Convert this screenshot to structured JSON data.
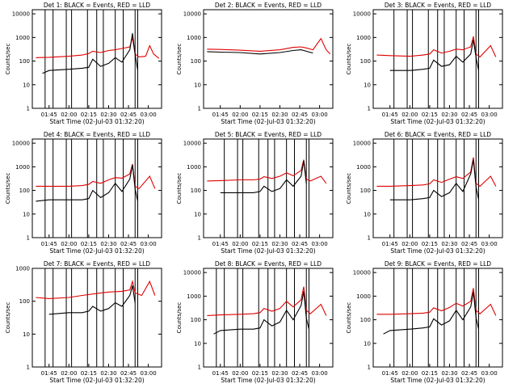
{
  "figure": {
    "xlabel": "Start Time (02-Jul-03 01:32:20)",
    "ylabel": "Counts/sec",
    "x_ticks": [
      "01:45",
      "02:00",
      "02:15",
      "02:30",
      "02:45",
      "03:00"
    ],
    "y_ticks": [
      "1",
      "10",
      "100",
      "1000",
      "10000"
    ],
    "colors": {
      "events": "#000000",
      "lld": "#e00000",
      "axes": "#000000",
      "background": "#ffffff"
    }
  },
  "chart_data": [
    {
      "type": "line",
      "title": "Det 1: BLACK = Events, RED = LLD",
      "x_unit": "time (HH:MM, 02-Jul-03)",
      "xlim": [
        "01:32:20",
        "03:10:00"
      ],
      "ylim": [
        1,
        15000
      ],
      "y_scale": "log",
      "series": [],
      "lld": [
        [
          "01:35",
          140
        ],
        [
          "01:45",
          145
        ],
        [
          "02:00",
          160
        ],
        [
          "02:10",
          180
        ],
        [
          "02:15",
          210
        ],
        [
          "02:18",
          260
        ],
        [
          "02:24",
          230
        ],
        [
          "02:30",
          280
        ],
        [
          "02:35",
          300
        ],
        [
          "02:40",
          340
        ],
        [
          "02:46",
          400
        ],
        [
          "02:48",
          1000
        ],
        [
          "02:50",
          200
        ],
        [
          "02:53",
          150
        ],
        [
          "02:58",
          160
        ],
        [
          "03:01",
          450
        ],
        [
          "03:04",
          200
        ],
        [
          "03:08",
          130
        ]
      ],
      "events": [
        [
          "01:40",
          30
        ],
        [
          "01:45",
          40
        ],
        [
          "02:00",
          45
        ],
        [
          "02:10",
          50
        ],
        [
          "02:15",
          55
        ],
        [
          "02:18",
          120
        ],
        [
          "02:24",
          60
        ],
        [
          "02:30",
          80
        ],
        [
          "02:35",
          140
        ],
        [
          "02:40",
          90
        ],
        [
          "02:46",
          300
        ],
        [
          "02:48",
          1500
        ],
        [
          "02:50",
          200
        ],
        [
          "02:52",
          40
        ]
      ],
      "interval_lines": [
        "01:42",
        "01:48",
        "01:58",
        "02:02",
        "02:14",
        "02:21",
        "02:26",
        "02:35",
        "02:41",
        "02:50",
        "02:52"
      ]
    },
    {
      "type": "line",
      "title": "Det 2: BLACK = Events, RED = LLD",
      "x_unit": "time (HH:MM, 02-Jul-03)",
      "xlim": [
        "01:32:20",
        "03:10:00"
      ],
      "ylim": [
        1,
        15000
      ],
      "y_scale": "log",
      "series": [],
      "lld": [
        [
          "01:35",
          320
        ],
        [
          "01:45",
          310
        ],
        [
          "02:00",
          290
        ],
        [
          "02:15",
          260
        ],
        [
          "02:30",
          300
        ],
        [
          "02:40",
          380
        ],
        [
          "02:46",
          400
        ],
        [
          "02:50",
          360
        ],
        [
          "02:55",
          300
        ],
        [
          "03:01",
          900
        ],
        [
          "03:05",
          300
        ],
        [
          "03:08",
          200
        ]
      ],
      "events": [
        [
          "01:35",
          250
        ],
        [
          "01:45",
          240
        ],
        [
          "02:00",
          230
        ],
        [
          "02:15",
          200
        ],
        [
          "02:30",
          230
        ],
        [
          "02:40",
          280
        ],
        [
          "02:46",
          300
        ],
        [
          "02:50",
          260
        ],
        [
          "02:55",
          220
        ]
      ],
      "interval_lines": []
    },
    {
      "type": "line",
      "title": "Det 3: BLACK = Events, RED = LLD",
      "x_unit": "time (HH:MM, 02-Jul-03)",
      "xlim": [
        "01:32:20",
        "03:10:00"
      ],
      "ylim": [
        1,
        15000
      ],
      "y_scale": "log",
      "series": [],
      "lld": [
        [
          "01:35",
          180
        ],
        [
          "01:45",
          170
        ],
        [
          "02:00",
          160
        ],
        [
          "02:10",
          180
        ],
        [
          "02:15",
          200
        ],
        [
          "02:18",
          300
        ],
        [
          "02:24",
          220
        ],
        [
          "02:30",
          260
        ],
        [
          "02:35",
          320
        ],
        [
          "02:40",
          300
        ],
        [
          "02:46",
          400
        ],
        [
          "02:48",
          1100
        ],
        [
          "02:50",
          200
        ],
        [
          "02:53",
          150
        ],
        [
          "03:01",
          450
        ],
        [
          "03:05",
          150
        ]
      ],
      "events": [
        [
          "01:45",
          40
        ],
        [
          "02:00",
          40
        ],
        [
          "02:10",
          45
        ],
        [
          "02:15",
          50
        ],
        [
          "02:18",
          110
        ],
        [
          "02:24",
          60
        ],
        [
          "02:30",
          70
        ],
        [
          "02:35",
          160
        ],
        [
          "02:40",
          90
        ],
        [
          "02:46",
          200
        ],
        [
          "02:48",
          800
        ],
        [
          "02:50",
          150
        ],
        [
          "02:52",
          40
        ]
      ],
      "interval_lines": [
        "01:48",
        "01:58",
        "02:02",
        "02:14",
        "02:21",
        "02:26",
        "02:35",
        "02:41",
        "02:50",
        "02:52"
      ]
    },
    {
      "type": "line",
      "title": "Det 4: BLACK = Events, RED = LLD",
      "x_unit": "time (HH:MM, 02-Jul-03)",
      "xlim": [
        "01:32:20",
        "03:10:00"
      ],
      "ylim": [
        1,
        15000
      ],
      "y_scale": "log",
      "series": [],
      "lld": [
        [
          "01:35",
          150
        ],
        [
          "01:45",
          150
        ],
        [
          "02:00",
          150
        ],
        [
          "02:10",
          160
        ],
        [
          "02:15",
          180
        ],
        [
          "02:18",
          240
        ],
        [
          "02:24",
          200
        ],
        [
          "02:30",
          280
        ],
        [
          "02:35",
          350
        ],
        [
          "02:40",
          330
        ],
        [
          "02:46",
          500
        ],
        [
          "02:48",
          1300
        ],
        [
          "02:50",
          150
        ],
        [
          "02:53",
          120
        ],
        [
          "03:01",
          400
        ],
        [
          "03:05",
          120
        ]
      ],
      "events": [
        [
          "01:35",
          35
        ],
        [
          "01:45",
          40
        ],
        [
          "02:00",
          40
        ],
        [
          "02:10",
          40
        ],
        [
          "02:15",
          45
        ],
        [
          "02:18",
          100
        ],
        [
          "02:24",
          50
        ],
        [
          "02:30",
          80
        ],
        [
          "02:35",
          200
        ],
        [
          "02:40",
          90
        ],
        [
          "02:46",
          300
        ],
        [
          "02:48",
          1200
        ],
        [
          "02:50",
          120
        ],
        [
          "02:52",
          35
        ]
      ],
      "interval_lines": [
        "01:42",
        "01:48",
        "01:58",
        "02:02",
        "02:14",
        "02:21",
        "02:26",
        "02:35",
        "02:41",
        "02:50",
        "02:52"
      ]
    },
    {
      "type": "line",
      "title": "Det 5: BLACK = Events, RED = LLD",
      "x_unit": "time (HH:MM, 02-Jul-03)",
      "xlim": [
        "01:32:20",
        "03:10:00"
      ],
      "ylim": [
        1,
        15000
      ],
      "y_scale": "log",
      "series": [],
      "lld": [
        [
          "01:35",
          250
        ],
        [
          "01:45",
          260
        ],
        [
          "02:00",
          280
        ],
        [
          "02:10",
          280
        ],
        [
          "02:15",
          300
        ],
        [
          "02:18",
          380
        ],
        [
          "02:24",
          320
        ],
        [
          "02:30",
          400
        ],
        [
          "02:35",
          550
        ],
        [
          "02:40",
          420
        ],
        [
          "02:46",
          700
        ],
        [
          "02:48",
          2000
        ],
        [
          "02:50",
          300
        ],
        [
          "02:53",
          250
        ],
        [
          "03:01",
          400
        ],
        [
          "03:05",
          200
        ]
      ],
      "events": [
        [
          "01:45",
          80
        ],
        [
          "02:00",
          80
        ],
        [
          "02:10",
          80
        ],
        [
          "02:15",
          90
        ],
        [
          "02:18",
          150
        ],
        [
          "02:24",
          90
        ],
        [
          "02:30",
          120
        ],
        [
          "02:35",
          280
        ],
        [
          "02:40",
          150
        ],
        [
          "02:46",
          400
        ],
        [
          "02:48",
          1800
        ],
        [
          "02:50",
          200
        ]
      ],
      "interval_lines": [
        "01:48",
        "01:58",
        "02:02",
        "02:14",
        "02:21",
        "02:26",
        "02:35",
        "02:41",
        "02:50",
        "02:52"
      ]
    },
    {
      "type": "line",
      "title": "Det 6: BLACK = Events, RED = LLD",
      "x_unit": "time (HH:MM, 02-Jul-03)",
      "xlim": [
        "01:32:20",
        "03:10:00"
      ],
      "ylim": [
        1,
        15000
      ],
      "y_scale": "log",
      "series": [],
      "lld": [
        [
          "01:35",
          150
        ],
        [
          "01:45",
          150
        ],
        [
          "02:00",
          160
        ],
        [
          "02:10",
          170
        ],
        [
          "02:15",
          190
        ],
        [
          "02:18",
          280
        ],
        [
          "02:24",
          220
        ],
        [
          "02:30",
          300
        ],
        [
          "02:35",
          380
        ],
        [
          "02:40",
          320
        ],
        [
          "02:46",
          600
        ],
        [
          "02:48",
          2500
        ],
        [
          "02:50",
          200
        ],
        [
          "02:53",
          150
        ],
        [
          "03:01",
          400
        ],
        [
          "03:05",
          150
        ]
      ],
      "events": [
        [
          "01:45",
          40
        ],
        [
          "02:00",
          40
        ],
        [
          "02:10",
          45
        ],
        [
          "02:15",
          50
        ],
        [
          "02:18",
          100
        ],
        [
          "02:24",
          55
        ],
        [
          "02:30",
          80
        ],
        [
          "02:35",
          200
        ],
        [
          "02:40",
          90
        ],
        [
          "02:46",
          500
        ],
        [
          "02:48",
          2000
        ],
        [
          "02:50",
          150
        ],
        [
          "02:52",
          40
        ]
      ],
      "interval_lines": [
        "01:48",
        "01:58",
        "02:02",
        "02:14",
        "02:21",
        "02:26",
        "02:35",
        "02:41",
        "02:50",
        "02:52"
      ]
    },
    {
      "type": "line",
      "title": "Det 7: BLACK = Events, RED = LLD",
      "x_unit": "time (HH:MM, 02-Jul-03)",
      "xlim": [
        "01:32:20",
        "03:10:00"
      ],
      "ylim": [
        1,
        1000
      ],
      "y_scale": "log",
      "series": [],
      "lld": [
        [
          "01:35",
          130
        ],
        [
          "01:45",
          120
        ],
        [
          "02:00",
          130
        ],
        [
          "02:10",
          150
        ],
        [
          "02:20",
          170
        ],
        [
          "02:30",
          190
        ],
        [
          "02:40",
          200
        ],
        [
          "02:46",
          220
        ],
        [
          "02:48",
          400
        ],
        [
          "02:50",
          180
        ],
        [
          "02:55",
          150
        ],
        [
          "03:01",
          400
        ],
        [
          "03:05",
          150
        ]
      ],
      "events": [
        [
          "01:45",
          40
        ],
        [
          "02:00",
          45
        ],
        [
          "02:10",
          45
        ],
        [
          "02:15",
          50
        ],
        [
          "02:18",
          70
        ],
        [
          "02:24",
          50
        ],
        [
          "02:30",
          60
        ],
        [
          "02:35",
          90
        ],
        [
          "02:40",
          70
        ],
        [
          "02:46",
          150
        ],
        [
          "02:48",
          300
        ],
        [
          "02:50",
          90
        ]
      ],
      "interval_lines": [
        "01:42",
        "01:48",
        "01:58",
        "02:02",
        "02:14",
        "02:21",
        "02:26",
        "02:35",
        "02:41",
        "02:50",
        "02:52"
      ]
    },
    {
      "type": "line",
      "title": "Det 8: BLACK = Events, RED = LLD",
      "x_unit": "time (HH:MM, 02-Jul-03)",
      "xlim": [
        "01:32:20",
        "03:10:00"
      ],
      "ylim": [
        1,
        15000
      ],
      "y_scale": "log",
      "series": [],
      "lld": [
        [
          "01:35",
          150
        ],
        [
          "01:45",
          160
        ],
        [
          "02:00",
          170
        ],
        [
          "02:10",
          180
        ],
        [
          "02:15",
          200
        ],
        [
          "02:18",
          300
        ],
        [
          "02:24",
          230
        ],
        [
          "02:30",
          300
        ],
        [
          "02:35",
          600
        ],
        [
          "02:40",
          350
        ],
        [
          "02:46",
          700
        ],
        [
          "02:48",
          2500
        ],
        [
          "02:50",
          250
        ],
        [
          "02:53",
          180
        ],
        [
          "03:01",
          450
        ],
        [
          "03:05",
          150
        ]
      ],
      "events": [
        [
          "01:40",
          25
        ],
        [
          "01:45",
          35
        ],
        [
          "02:00",
          40
        ],
        [
          "02:10",
          40
        ],
        [
          "02:15",
          45
        ],
        [
          "02:18",
          100
        ],
        [
          "02:24",
          55
        ],
        [
          "02:30",
          80
        ],
        [
          "02:35",
          250
        ],
        [
          "02:40",
          100
        ],
        [
          "02:46",
          400
        ],
        [
          "02:48",
          1600
        ],
        [
          "02:50",
          120
        ],
        [
          "02:52",
          40
        ]
      ],
      "interval_lines": [
        "01:42",
        "01:48",
        "01:58",
        "02:02",
        "02:14",
        "02:21",
        "02:26",
        "02:35",
        "02:41",
        "02:50",
        "02:52"
      ]
    },
    {
      "type": "line",
      "title": "Det 9: BLACK = Events, RED = LLD",
      "x_unit": "time (HH:MM, 02-Jul-03)",
      "xlim": [
        "01:32:20",
        "03:10:00"
      ],
      "ylim": [
        1,
        15000
      ],
      "y_scale": "log",
      "series": [],
      "lld": [
        [
          "01:35",
          170
        ],
        [
          "01:45",
          170
        ],
        [
          "02:00",
          180
        ],
        [
          "02:10",
          190
        ],
        [
          "02:15",
          210
        ],
        [
          "02:18",
          320
        ],
        [
          "02:24",
          240
        ],
        [
          "02:30",
          330
        ],
        [
          "02:35",
          500
        ],
        [
          "02:40",
          380
        ],
        [
          "02:46",
          600
        ],
        [
          "02:48",
          2200
        ],
        [
          "02:50",
          250
        ],
        [
          "02:53",
          180
        ],
        [
          "03:01",
          450
        ],
        [
          "03:05",
          150
        ]
      ],
      "events": [
        [
          "01:40",
          25
        ],
        [
          "01:45",
          35
        ],
        [
          "02:00",
          40
        ],
        [
          "02:10",
          45
        ],
        [
          "02:15",
          50
        ],
        [
          "02:18",
          110
        ],
        [
          "02:24",
          60
        ],
        [
          "02:30",
          90
        ],
        [
          "02:35",
          250
        ],
        [
          "02:40",
          100
        ],
        [
          "02:46",
          350
        ],
        [
          "02:48",
          1500
        ],
        [
          "02:50",
          130
        ],
        [
          "02:52",
          40
        ]
      ],
      "interval_lines": [
        "01:48",
        "01:58",
        "02:02",
        "02:14",
        "02:21",
        "02:26",
        "02:35",
        "02:41",
        "02:50",
        "02:52"
      ]
    }
  ]
}
